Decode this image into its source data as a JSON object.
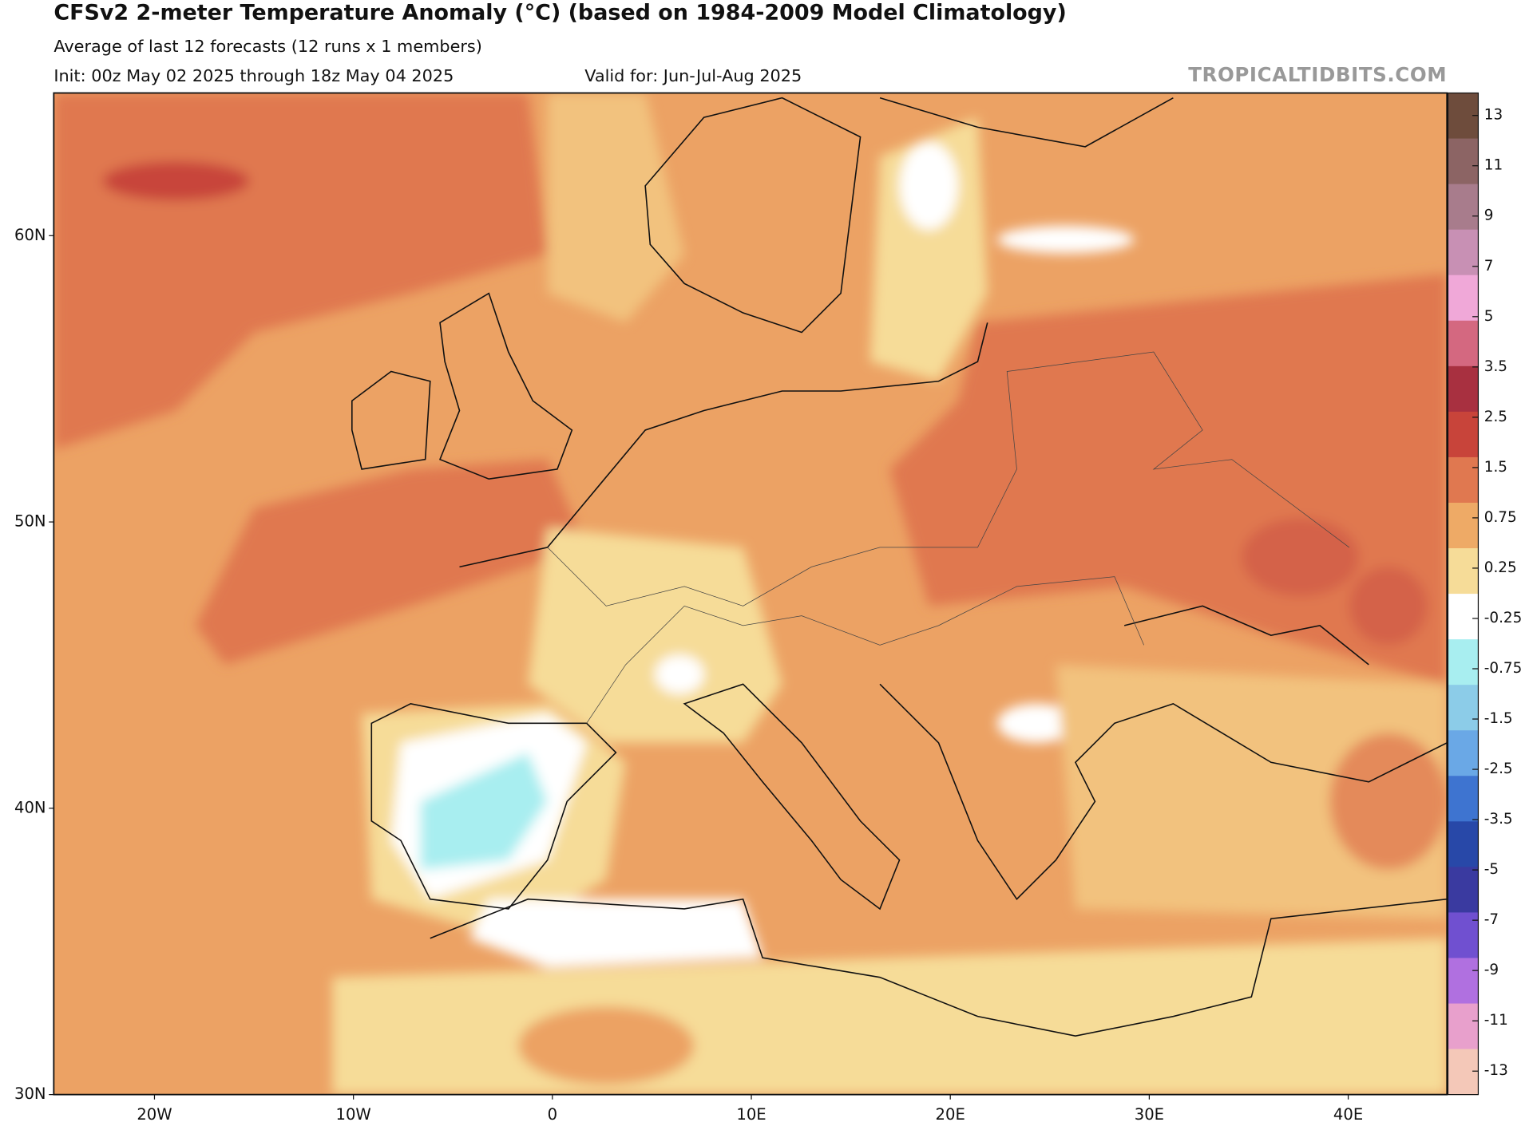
{
  "header": {
    "title": "CFSv2 2-meter Temperature Anomaly (°C) (based on 1984-2009 Model Climatology)",
    "subtitle": "Average of last 12 forecasts (12 runs x 1 members)",
    "init": "Init: 00z May 02 2025 through 18z May 04 2025",
    "valid": "Valid for: Jun-Jul-Aug 2025",
    "watermark": "TROPICALTIDBITS.COM"
  },
  "map": {
    "lat_labels": [
      "60N",
      "50N",
      "40N",
      "30N"
    ],
    "lon_labels": [
      "20W",
      "10W",
      "0",
      "10E",
      "20E",
      "30E",
      "40E"
    ]
  },
  "colorbar": {
    "labels": [
      13,
      11,
      9,
      7,
      5,
      3.5,
      2.5,
      1.5,
      0.75,
      0.25,
      -0.25,
      -0.75,
      -1.5,
      -2.5,
      -3.5,
      -5,
      -7,
      -9,
      -11,
      -13
    ],
    "colors": [
      "#6e4c3c",
      "#8c6464",
      "#a87c8c",
      "#c890b4",
      "#f0a8d8",
      "#d46880",
      "#a83040",
      "#c8443a",
      "#e07850",
      "#eeaa66",
      "#f6dc98",
      "#ffffff",
      "#a8eef0",
      "#8ccce8",
      "#6aa8e6",
      "#3e74d0",
      "#2848a8",
      "#3a3aa0",
      "#7050d0",
      "#b070e0",
      "#e8a0cc",
      "#f4c8b8"
    ]
  }
}
